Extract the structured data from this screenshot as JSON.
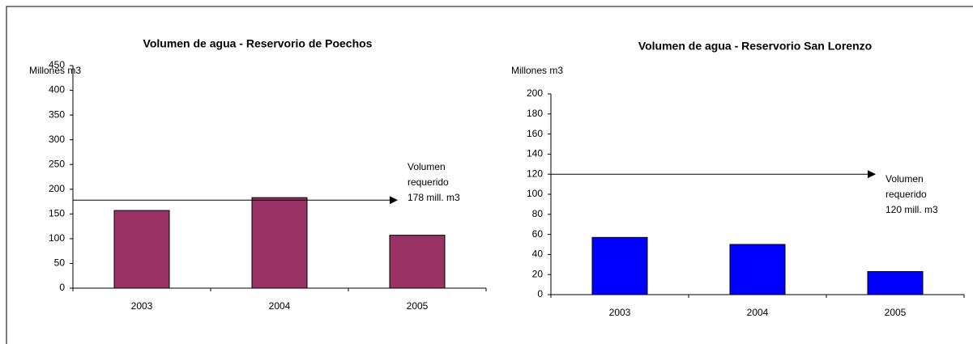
{
  "chart_data": [
    {
      "type": "bar",
      "title": "Volumen  de agua - Reservorio de Poechos",
      "y_label": "Millones m3",
      "categories": [
        "2003",
        "2004",
        "2005"
      ],
      "values": [
        157,
        183,
        107
      ],
      "color": "#993366",
      "ylim": [
        0,
        450
      ],
      "yticks": [
        0,
        50,
        100,
        150,
        200,
        250,
        300,
        350,
        400,
        450
      ],
      "annotation": {
        "text": [
          "Volumen",
          "requerido",
          "178 mill. m3"
        ],
        "value": 178
      }
    },
    {
      "type": "bar",
      "title": "Volumen  de agua - Reservorio San Lorenzo",
      "y_label": "Millones m3",
      "categories": [
        "2003",
        "2004",
        "2005"
      ],
      "values": [
        57,
        50,
        23
      ],
      "color": "#0000ff",
      "ylim": [
        0,
        200
      ],
      "yticks": [
        0,
        20,
        40,
        60,
        80,
        100,
        120,
        140,
        160,
        180,
        200
      ],
      "annotation": {
        "text": [
          "Volumen",
          "requerido",
          "120 mill. m3"
        ],
        "value": 120
      }
    }
  ]
}
